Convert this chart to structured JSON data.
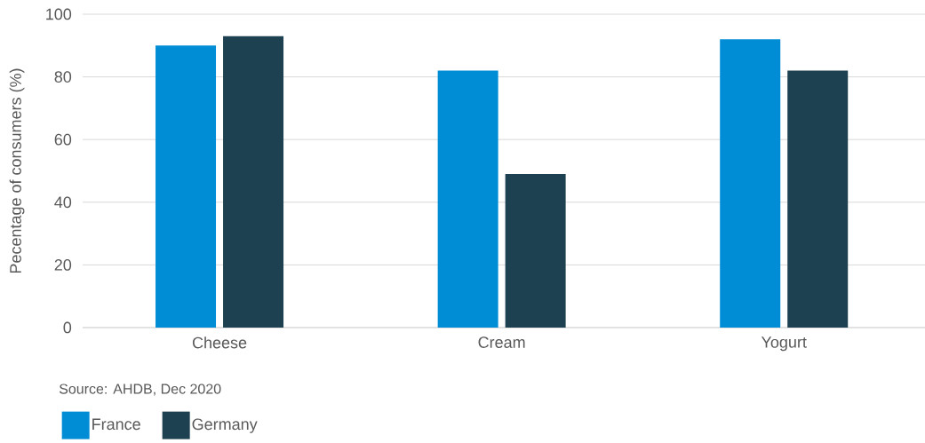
{
  "chart_data": {
    "type": "bar",
    "ylabel": "Pecentage of consumers (%)",
    "categories": [
      "Cheese",
      "Cream",
      "Yogurt"
    ],
    "series": [
      {
        "name": "France",
        "color": "#008dd5",
        "values": [
          90,
          82,
          92
        ]
      },
      {
        "name": "Germany",
        "color": "#1e4151",
        "values": [
          93,
          49,
          82
        ]
      }
    ],
    "ylim": [
      0,
      100
    ],
    "yticks": [
      0,
      20,
      40,
      60,
      80,
      100
    ],
    "grid": "y",
    "legend": "bottom",
    "annotations": [
      "Source: AHDB, Dec 2020"
    ]
  }
}
